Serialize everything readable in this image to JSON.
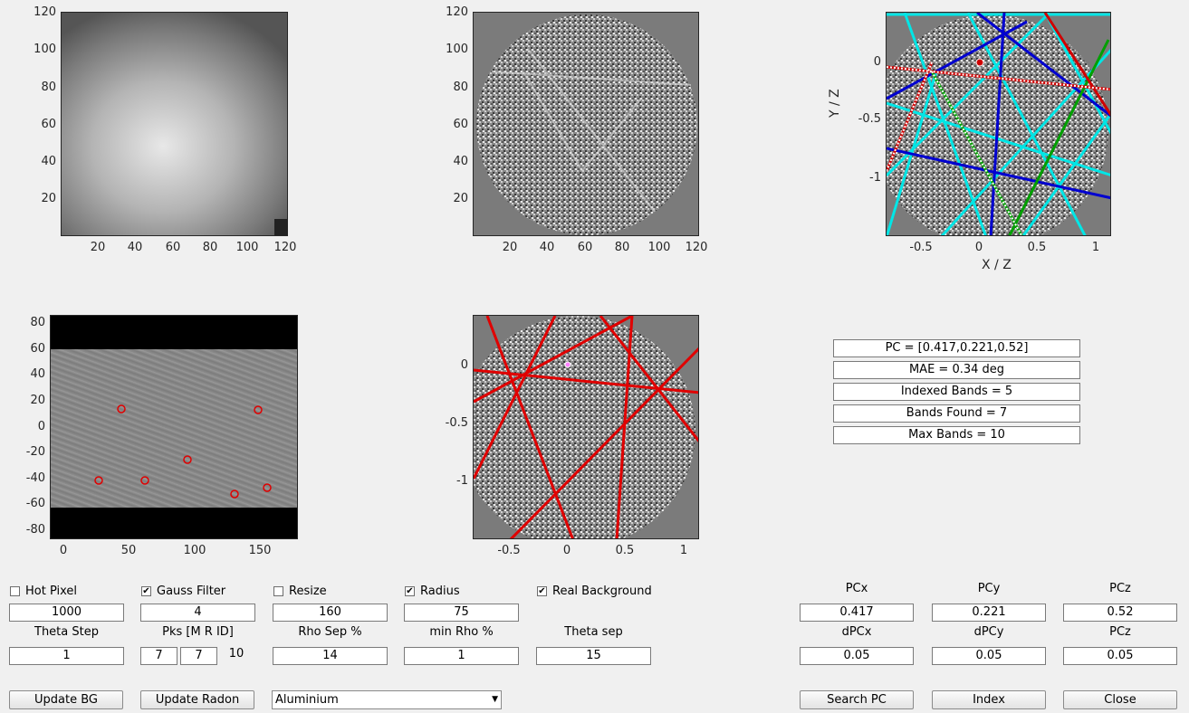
{
  "plots": {
    "raw_pattern": {
      "yticks": [
        "120",
        "100",
        "80",
        "60",
        "40",
        "20"
      ],
      "xticks": [
        "20",
        "40",
        "60",
        "80",
        "100",
        "120"
      ]
    },
    "processed_pattern": {
      "yticks": [
        "120",
        "100",
        "80",
        "60",
        "40",
        "20"
      ],
      "xticks": [
        "20",
        "40",
        "60",
        "80",
        "100",
        "120"
      ]
    },
    "indexed_pattern": {
      "yticks": [
        "0",
        "-0.5",
        "-1"
      ],
      "xticks": [
        "-0.5",
        "0",
        "0.5",
        "1"
      ],
      "xlabel": "X / Z",
      "ylabel": "Y / Z"
    },
    "radon": {
      "yticks": [
        "80",
        "60",
        "40",
        "20",
        "0",
        "-20",
        "-40",
        "-60",
        "-80"
      ],
      "xticks": [
        "0",
        "50",
        "100",
        "150"
      ]
    },
    "bands": {
      "yticks": [
        "0",
        "-0.5",
        "-1"
      ],
      "xticks": [
        "-0.5",
        "0",
        "0.5",
        "1"
      ]
    }
  },
  "info": {
    "pc": "PC = [0.417,0.221,0.52]",
    "mae": "MAE = 0.34 deg",
    "indexed": "Indexed Bands = 5",
    "found": "Bands Found = 7",
    "max": "Max Bands = 10"
  },
  "controls": {
    "hot_pixel": {
      "label": "Hot Pixel",
      "checked": false
    },
    "gauss": {
      "label": "Gauss Filter",
      "checked": true
    },
    "resize": {
      "label": "Resize",
      "checked": false
    },
    "radius": {
      "label": "Radius",
      "checked": true
    },
    "realbg": {
      "label": "Real Background",
      "checked": true
    },
    "hot_pixel_value": "1000",
    "gauss_value": "4",
    "resize_value": "160",
    "radius_value": "75",
    "theta_step_label": "Theta Step",
    "pks_label": "Pks [M R ID]",
    "rho_sep_label": "Rho Sep %",
    "min_rho_label": "min Rho %",
    "theta_sep_label": "Theta sep",
    "theta_step_value": "1",
    "pks_m": "7",
    "pks_r": "7",
    "pks_id": "10",
    "rho_sep_value": "14",
    "min_rho_value": "1",
    "theta_sep_value": "15"
  },
  "pc_controls": {
    "pcx_label": "PCx",
    "pcy_label": "PCy",
    "pcz_label": "PCz",
    "pcx": "0.417",
    "pcy": "0.221",
    "pcz": "0.52",
    "dpcx_label": "dPCx",
    "dpcy_label": "dPCy",
    "dpcz_label": "PCz",
    "dpcx": "0.05",
    "dpcy": "0.05",
    "dpcz": "0.05"
  },
  "buttons": {
    "update_bg": "Update BG",
    "update_radon": "Update Radon",
    "material": "Aluminium",
    "search_pc": "Search PC",
    "index": "Index",
    "close": "Close"
  }
}
